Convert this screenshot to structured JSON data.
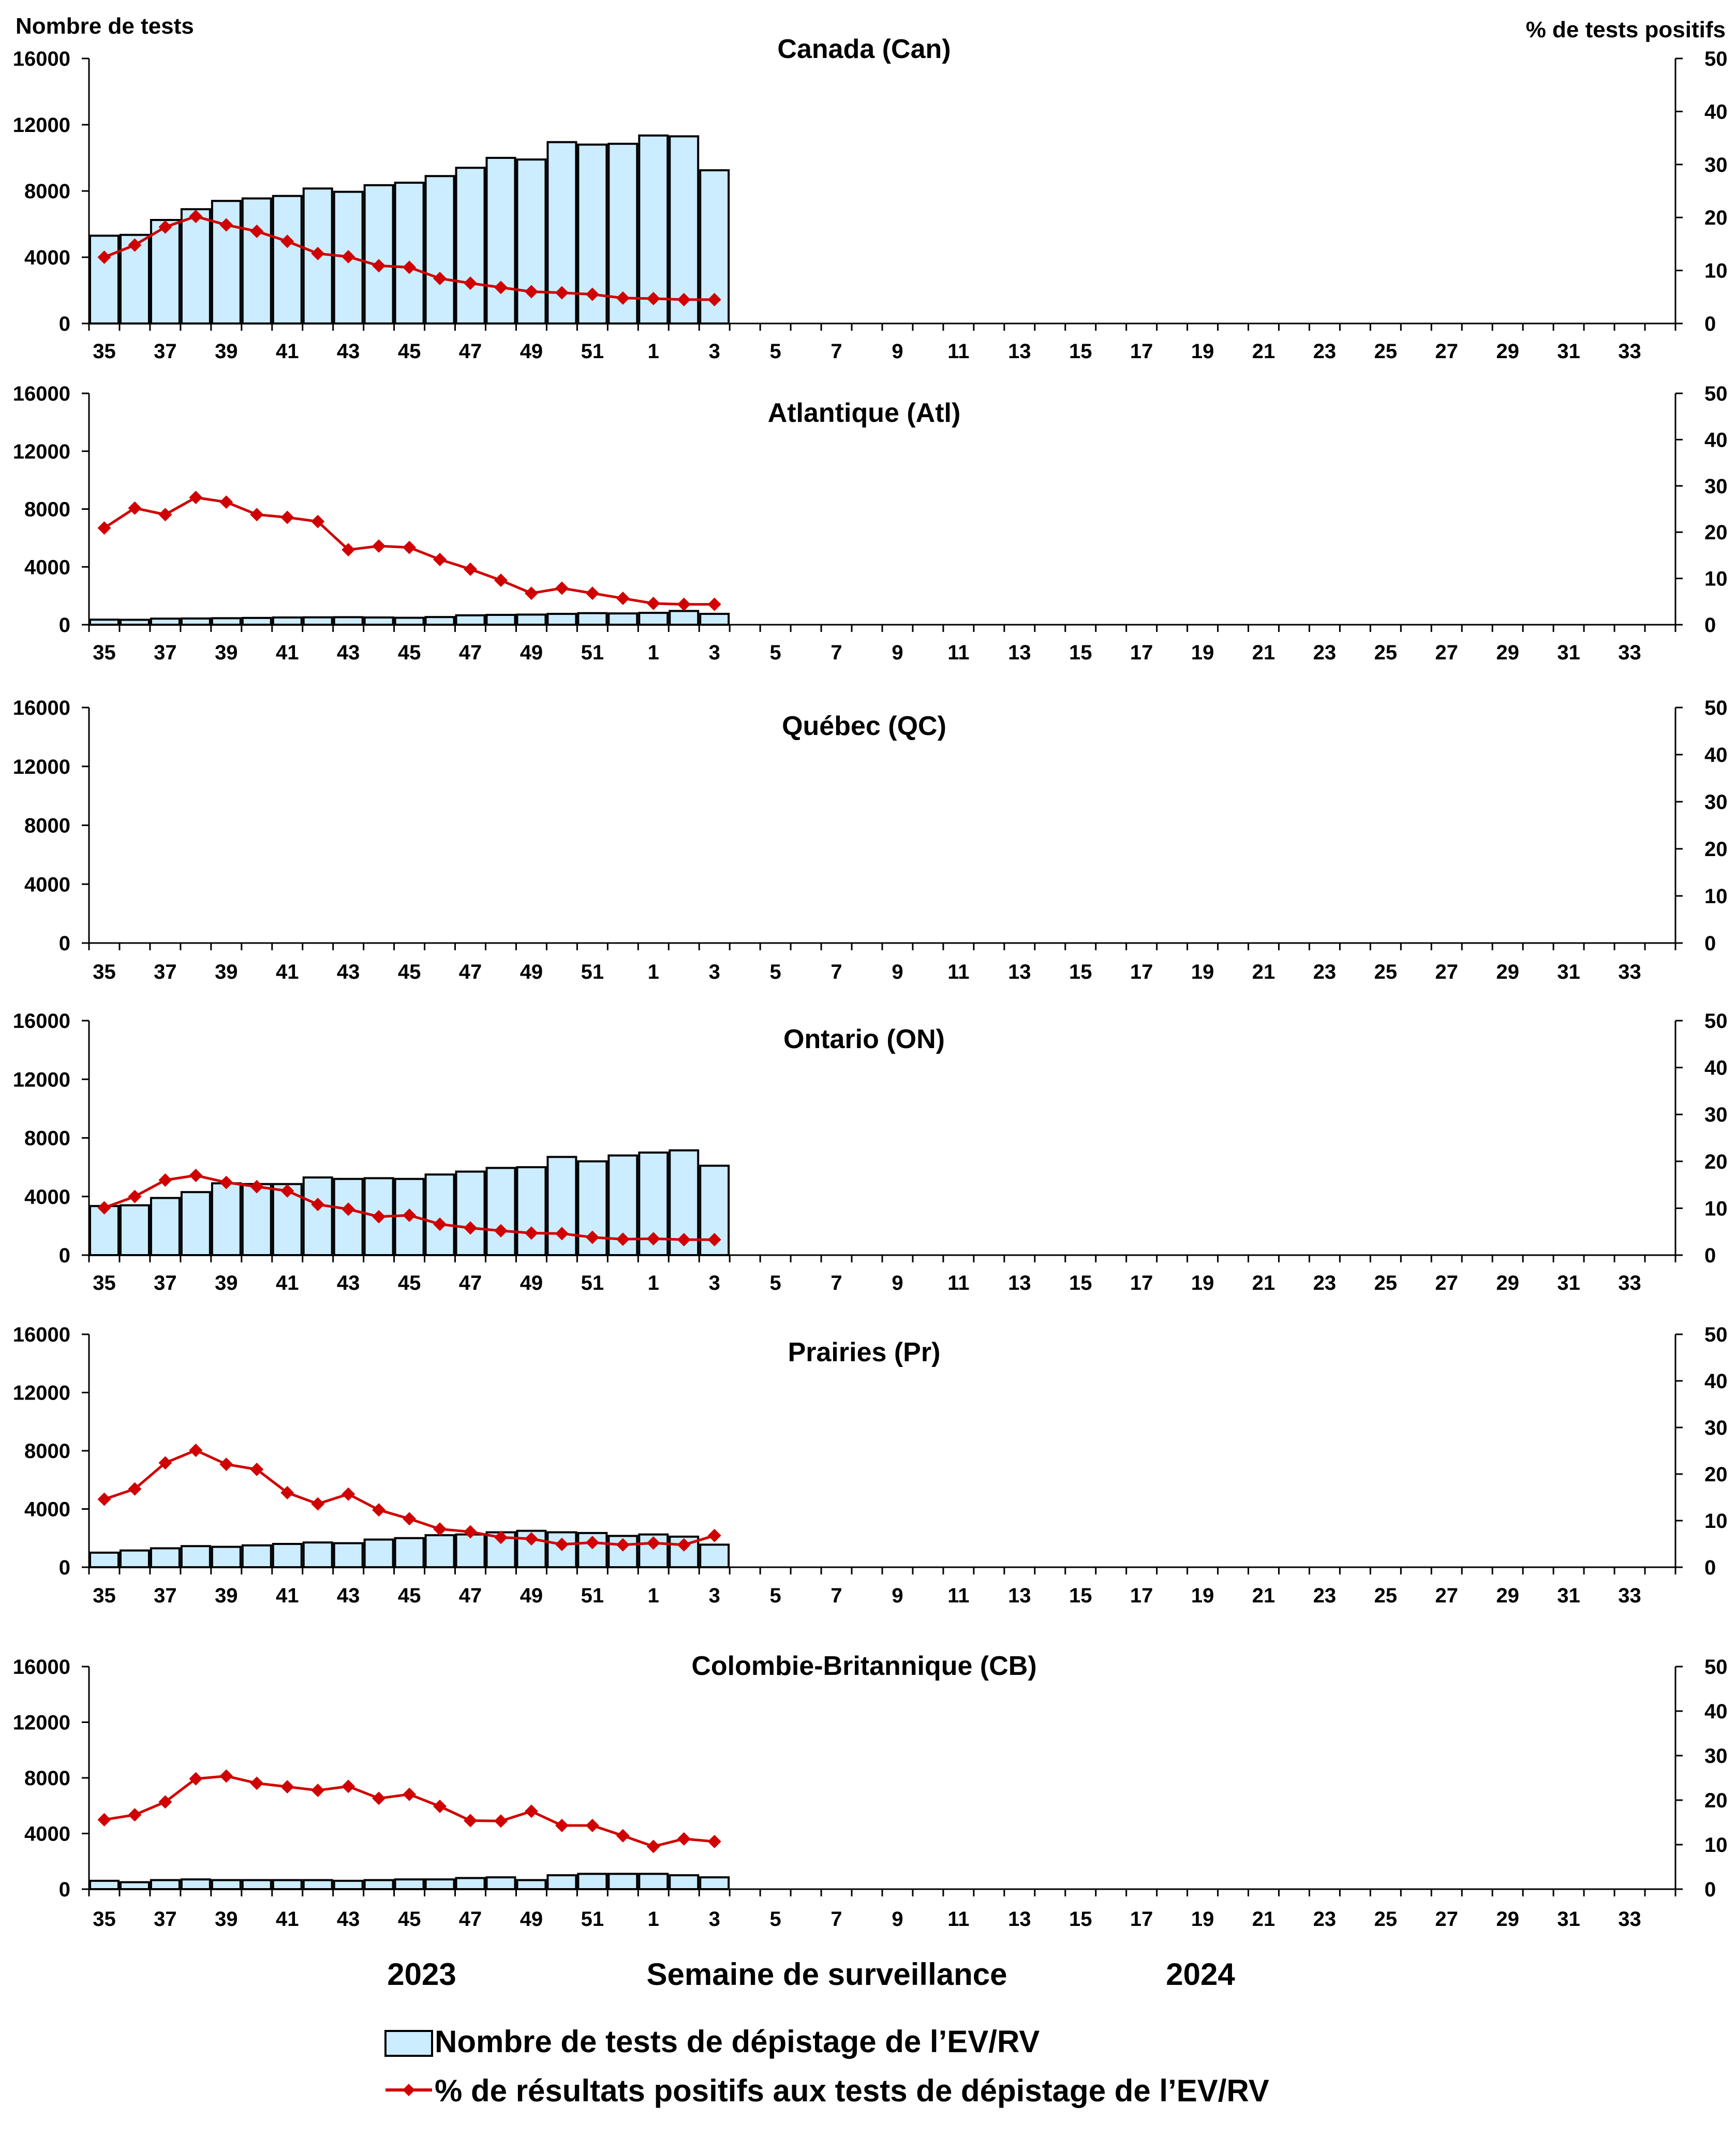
{
  "y_left_label": "Nombre de tests",
  "y_right_label": "% de tests positifs",
  "x_axis_title": "Semaine de surveillance",
  "year_left": "2023",
  "year_right": "2024",
  "legend": {
    "bar_label": "Nombre de tests de dépistage de l’EV/RV",
    "line_label": "% de résultats positifs aux tests de dépistage de l’EV/RV"
  },
  "colors": {
    "bar_fill": "#CCECFF",
    "bar_stroke": "#000000",
    "line": "#D00000",
    "axis": "#000000"
  },
  "chart_data": [
    {
      "type": "bar",
      "title": "Canada (Can)",
      "weeks": [
        "35",
        "36",
        "37",
        "38",
        "39",
        "40",
        "41",
        "42",
        "43",
        "44",
        "45",
        "46",
        "47",
        "48",
        "49",
        "50",
        "51",
        "52",
        "1",
        "2",
        "3",
        "4",
        "5",
        "6",
        "7",
        "8",
        "9",
        "10",
        "11",
        "12",
        "13",
        "14",
        "15",
        "16",
        "17",
        "18",
        "19",
        "20",
        "21",
        "22",
        "23",
        "24",
        "25",
        "26",
        "27",
        "28",
        "29",
        "30",
        "31",
        "32",
        "33",
        "34"
      ],
      "tick_labels": [
        "35",
        "37",
        "39",
        "41",
        "43",
        "45",
        "47",
        "49",
        "51",
        "1",
        "3",
        "5",
        "7",
        "9",
        "11",
        "13",
        "15",
        "17",
        "19",
        "21",
        "23",
        "25",
        "27",
        "29",
        "31",
        "33"
      ],
      "ylim_left": [
        0,
        16000
      ],
      "yticks_left": [
        "0",
        "4000",
        "8000",
        "12000",
        "16000"
      ],
      "ylim_right": [
        0,
        50
      ],
      "yticks_right": [
        "0",
        "10",
        "20",
        "30",
        "40",
        "50"
      ],
      "series": [
        {
          "name": "Nombre de tests de dépistage de l’EV/RV",
          "axis": "left",
          "values": [
            5300,
            5350,
            6250,
            6900,
            7400,
            7550,
            7700,
            8150,
            7950,
            8350,
            8500,
            8900,
            9400,
            10000,
            9900,
            10950,
            10800,
            10850,
            11350,
            11300,
            9250
          ]
        },
        {
          "name": "% de résultats positifs aux tests de dépistage de l’EV/RV",
          "axis": "right",
          "values": [
            12.5,
            14.8,
            18.2,
            20.2,
            18.6,
            17.4,
            15.5,
            13.2,
            12.6,
            10.9,
            10.6,
            8.5,
            7.6,
            6.8,
            6.0,
            5.8,
            5.5,
            4.8,
            4.7,
            4.5,
            4.5
          ]
        }
      ]
    },
    {
      "type": "bar",
      "title": "Atlantique (Atl)",
      "weeks": [
        "35",
        "36",
        "37",
        "38",
        "39",
        "40",
        "41",
        "42",
        "43",
        "44",
        "45",
        "46",
        "47",
        "48",
        "49",
        "50",
        "51",
        "52",
        "1",
        "2",
        "3",
        "4",
        "5",
        "6",
        "7",
        "8",
        "9",
        "10",
        "11",
        "12",
        "13",
        "14",
        "15",
        "16",
        "17",
        "18",
        "19",
        "20",
        "21",
        "22",
        "23",
        "24",
        "25",
        "26",
        "27",
        "28",
        "29",
        "30",
        "31",
        "32",
        "33",
        "34"
      ],
      "tick_labels": [
        "35",
        "37",
        "39",
        "41",
        "43",
        "45",
        "47",
        "49",
        "51",
        "1",
        "3",
        "5",
        "7",
        "9",
        "11",
        "13",
        "15",
        "17",
        "19",
        "21",
        "23",
        "25",
        "27",
        "29",
        "31",
        "33"
      ],
      "ylim_left": [
        0,
        16000
      ],
      "yticks_left": [
        "0",
        "4000",
        "8000",
        "12000",
        "16000"
      ],
      "ylim_right": [
        0,
        50
      ],
      "yticks_right": [
        "0",
        "10",
        "20",
        "30",
        "40",
        "50"
      ],
      "series": [
        {
          "name": "Nombre de tests de dépistage de l’EV/RV",
          "axis": "left",
          "values": [
            350,
            340,
            420,
            430,
            450,
            470,
            500,
            510,
            520,
            500,
            480,
            530,
            650,
            680,
            700,
            750,
            800,
            780,
            820,
            950,
            750
          ]
        },
        {
          "name": "% de résultats positifs aux tests de dépistage de l’EV/RV",
          "axis": "right",
          "values": [
            20.9,
            25.2,
            23.8,
            27.5,
            26.5,
            23.8,
            23.2,
            22.3,
            16.2,
            17.0,
            16.7,
            14.1,
            12.0,
            9.6,
            6.8,
            7.9,
            6.8,
            5.7,
            4.6,
            4.4,
            4.4
          ]
        }
      ]
    },
    {
      "type": "bar",
      "title": "Québec (QC)",
      "weeks": [
        "35",
        "36",
        "37",
        "38",
        "39",
        "40",
        "41",
        "42",
        "43",
        "44",
        "45",
        "46",
        "47",
        "48",
        "49",
        "50",
        "51",
        "52",
        "1",
        "2",
        "3",
        "4",
        "5",
        "6",
        "7",
        "8",
        "9",
        "10",
        "11",
        "12",
        "13",
        "14",
        "15",
        "16",
        "17",
        "18",
        "19",
        "20",
        "21",
        "22",
        "23",
        "24",
        "25",
        "26",
        "27",
        "28",
        "29",
        "30",
        "31",
        "32",
        "33",
        "34"
      ],
      "tick_labels": [
        "35",
        "37",
        "39",
        "41",
        "43",
        "45",
        "47",
        "49",
        "51",
        "1",
        "3",
        "5",
        "7",
        "9",
        "11",
        "13",
        "15",
        "17",
        "19",
        "21",
        "23",
        "25",
        "27",
        "29",
        "31",
        "33"
      ],
      "ylim_left": [
        0,
        16000
      ],
      "yticks_left": [
        "0",
        "4000",
        "8000",
        "12000",
        "16000"
      ],
      "ylim_right": [
        0,
        50
      ],
      "yticks_right": [
        "0",
        "10",
        "20",
        "30",
        "40",
        "50"
      ],
      "series": [
        {
          "name": "Nombre de tests de dépistage de l’EV/RV",
          "axis": "left",
          "values": []
        },
        {
          "name": "% de résultats positifs aux tests de dépistage de l’EV/RV",
          "axis": "right",
          "values": []
        }
      ]
    },
    {
      "type": "bar",
      "title": "Ontario (ON)",
      "weeks": [
        "35",
        "36",
        "37",
        "38",
        "39",
        "40",
        "41",
        "42",
        "43",
        "44",
        "45",
        "46",
        "47",
        "48",
        "49",
        "50",
        "51",
        "52",
        "1",
        "2",
        "3",
        "4",
        "5",
        "6",
        "7",
        "8",
        "9",
        "10",
        "11",
        "12",
        "13",
        "14",
        "15",
        "16",
        "17",
        "18",
        "19",
        "20",
        "21",
        "22",
        "23",
        "24",
        "25",
        "26",
        "27",
        "28",
        "29",
        "30",
        "31",
        "32",
        "33",
        "34"
      ],
      "tick_labels": [
        "35",
        "37",
        "39",
        "41",
        "43",
        "45",
        "47",
        "49",
        "51",
        "1",
        "3",
        "5",
        "7",
        "9",
        "11",
        "13",
        "15",
        "17",
        "19",
        "21",
        "23",
        "25",
        "27",
        "29",
        "31",
        "33"
      ],
      "ylim_left": [
        0,
        16000
      ],
      "yticks_left": [
        "0",
        "4000",
        "8000",
        "12000",
        "16000"
      ],
      "ylim_right": [
        0,
        50
      ],
      "yticks_right": [
        "0",
        "10",
        "20",
        "30",
        "40",
        "50"
      ],
      "series": [
        {
          "name": "Nombre de tests de dépistage de l’EV/RV",
          "axis": "left",
          "values": [
            3350,
            3400,
            3900,
            4300,
            4900,
            4850,
            4850,
            5300,
            5200,
            5250,
            5200,
            5500,
            5700,
            5950,
            6000,
            6700,
            6400,
            6800,
            7000,
            7150,
            6100
          ]
        },
        {
          "name": "% de résultats positifs aux tests de dépistage de l’EV/RV",
          "axis": "right",
          "values": [
            10.1,
            12.5,
            16.0,
            17.0,
            15.5,
            14.6,
            13.7,
            10.8,
            9.8,
            8.2,
            8.5,
            6.6,
            5.8,
            5.2,
            4.7,
            4.6,
            3.8,
            3.4,
            3.5,
            3.3,
            3.3
          ]
        }
      ]
    },
    {
      "type": "bar",
      "title": "Prairies (Pr)",
      "weeks": [
        "35",
        "36",
        "37",
        "38",
        "39",
        "40",
        "41",
        "42",
        "43",
        "44",
        "45",
        "46",
        "47",
        "48",
        "49",
        "50",
        "51",
        "52",
        "1",
        "2",
        "3",
        "4",
        "5",
        "6",
        "7",
        "8",
        "9",
        "10",
        "11",
        "12",
        "13",
        "14",
        "15",
        "16",
        "17",
        "18",
        "19",
        "20",
        "21",
        "22",
        "23",
        "24",
        "25",
        "26",
        "27",
        "28",
        "29",
        "30",
        "31",
        "32",
        "33",
        "34"
      ],
      "tick_labels": [
        "35",
        "37",
        "39",
        "41",
        "43",
        "45",
        "47",
        "49",
        "51",
        "1",
        "3",
        "5",
        "7",
        "9",
        "11",
        "13",
        "15",
        "17",
        "19",
        "21",
        "23",
        "25",
        "27",
        "29",
        "31",
        "33"
      ],
      "ylim_left": [
        0,
        16000
      ],
      "yticks_left": [
        "0",
        "4000",
        "8000",
        "12000",
        "16000"
      ],
      "ylim_right": [
        0,
        50
      ],
      "yticks_right": [
        "0",
        "10",
        "20",
        "30",
        "40",
        "50"
      ],
      "series": [
        {
          "name": "Nombre de tests de dépistage de l’EV/RV",
          "axis": "left",
          "values": [
            1000,
            1150,
            1300,
            1450,
            1400,
            1500,
            1600,
            1700,
            1650,
            1900,
            2000,
            2200,
            2250,
            2400,
            2500,
            2400,
            2350,
            2150,
            2250,
            2100,
            1550
          ]
        },
        {
          "name": "% de résultats positifs aux tests de dépistage de l’EV/RV",
          "axis": "right",
          "values": [
            14.6,
            16.8,
            22.4,
            25.1,
            22.1,
            21.0,
            16.0,
            13.6,
            15.7,
            12.3,
            10.4,
            8.2,
            7.6,
            6.4,
            6.1,
            4.9,
            5.3,
            4.8,
            5.2,
            4.8,
            6.8
          ]
        }
      ]
    },
    {
      "type": "bar",
      "title": "Colombie-Britannique (CB)",
      "weeks": [
        "35",
        "36",
        "37",
        "38",
        "39",
        "40",
        "41",
        "42",
        "43",
        "44",
        "45",
        "46",
        "47",
        "48",
        "49",
        "50",
        "51",
        "52",
        "1",
        "2",
        "3",
        "4",
        "5",
        "6",
        "7",
        "8",
        "9",
        "10",
        "11",
        "12",
        "13",
        "14",
        "15",
        "16",
        "17",
        "18",
        "19",
        "20",
        "21",
        "22",
        "23",
        "24",
        "25",
        "26",
        "27",
        "28",
        "29",
        "30",
        "31",
        "32",
        "33",
        "34"
      ],
      "tick_labels": [
        "35",
        "37",
        "39",
        "41",
        "43",
        "45",
        "47",
        "49",
        "51",
        "1",
        "3",
        "5",
        "7",
        "9",
        "11",
        "13",
        "15",
        "17",
        "19",
        "21",
        "23",
        "25",
        "27",
        "29",
        "31",
        "33"
      ],
      "ylim_left": [
        0,
        16000
      ],
      "yticks_left": [
        "0",
        "4000",
        "8000",
        "12000",
        "16000"
      ],
      "ylim_right": [
        0,
        50
      ],
      "yticks_right": [
        "0",
        "10",
        "20",
        "30",
        "40",
        "50"
      ],
      "series": [
        {
          "name": "Nombre de tests de dépistage de l’EV/RV",
          "axis": "left",
          "values": [
            600,
            500,
            650,
            700,
            650,
            650,
            650,
            650,
            600,
            650,
            700,
            700,
            800,
            850,
            650,
            1000,
            1100,
            1100,
            1100,
            1000,
            850
          ]
        },
        {
          "name": "% de résultats positifs aux tests de dépistage de l’EV/RV",
          "axis": "right",
          "values": [
            15.6,
            16.7,
            19.6,
            24.8,
            25.4,
            23.8,
            23.0,
            22.2,
            23.1,
            20.4,
            21.3,
            18.6,
            15.4,
            15.3,
            17.5,
            14.3,
            14.3,
            12.0,
            9.6,
            11.3,
            10.7
          ]
        }
      ]
    }
  ]
}
